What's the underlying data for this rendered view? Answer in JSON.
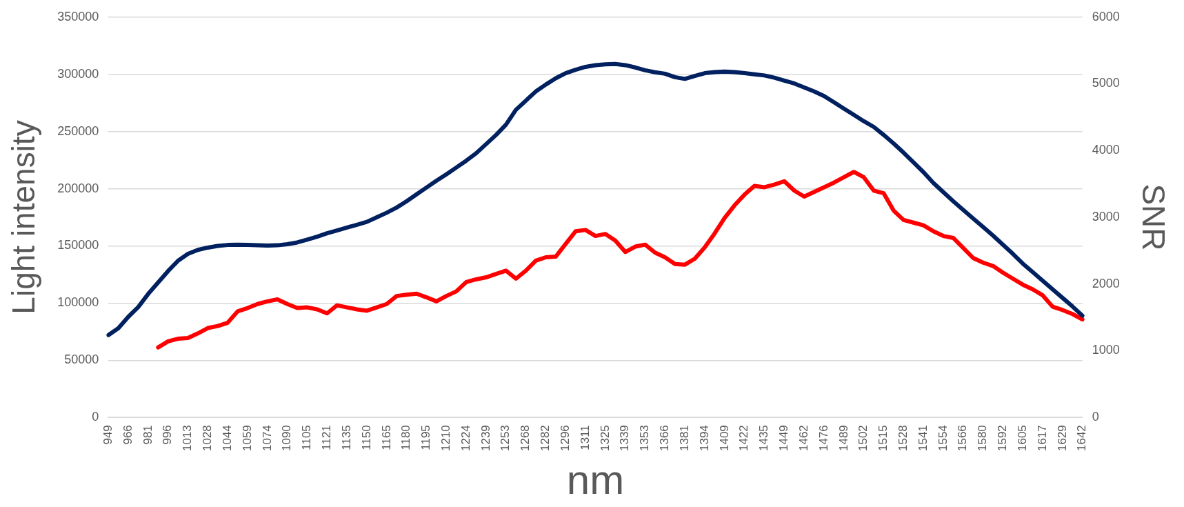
{
  "chart_data": {
    "type": "line",
    "xlabel": "nm",
    "ylabel": "Light intensity",
    "y2label": "SNR",
    "categories": [
      "949",
      null,
      "966",
      null,
      "981",
      null,
      "996",
      null,
      "1013",
      null,
      "1028",
      null,
      "1044",
      null,
      "1059",
      null,
      "1074",
      null,
      "1090",
      null,
      "1105",
      null,
      "1121",
      null,
      "1135",
      null,
      "1150",
      null,
      "1165",
      null,
      "1180",
      null,
      "1195",
      null,
      "1210",
      null,
      "1224",
      null,
      "1239",
      null,
      "1253",
      null,
      "1268",
      null,
      "1282",
      null,
      "1296",
      null,
      "1311",
      null,
      "1325",
      null,
      "1339",
      null,
      "1353",
      null,
      "1366",
      null,
      "1381",
      null,
      "1394",
      null,
      "1409",
      null,
      "1422",
      null,
      "1435",
      null,
      "1449",
      null,
      "1462",
      null,
      "1476",
      null,
      "1489",
      null,
      "1502",
      null,
      "1515",
      null,
      "1528",
      null,
      "1541",
      null,
      "1554",
      null,
      "1566",
      null,
      "1580",
      null,
      "1592",
      null,
      "1605",
      null,
      "1617",
      null,
      "1629",
      null,
      "1642"
    ],
    "series": [
      {
        "color": "#002060",
        "values": [
          72000,
          78000,
          88000,
          96500,
          108000,
          118000,
          128000,
          137000,
          143000,
          146500,
          148500,
          150000,
          150800,
          151000,
          150800,
          150500,
          150200,
          150500,
          151500,
          153000,
          155500,
          158000,
          161000,
          163500,
          166000,
          168500,
          171000,
          175000,
          179000,
          183500,
          189000,
          195000,
          201000,
          207000,
          212500,
          218500,
          224500,
          231000,
          239000,
          247000,
          256000,
          269000,
          277000,
          285000,
          291000,
          296500,
          301000,
          304000,
          306500,
          308000,
          308700,
          309000,
          308000,
          306000,
          303500,
          301800,
          300500,
          297500,
          296000,
          298500,
          301000,
          302000,
          302400,
          302000,
          301000,
          300000,
          299000,
          297000,
          294500,
          292000,
          288500,
          285000,
          281000,
          275500,
          270000,
          264500,
          259000,
          254000,
          247000,
          239500,
          231500,
          223000,
          214500,
          205000,
          197000,
          189000,
          181500,
          174000,
          166500,
          159000,
          151000,
          143000,
          134500,
          127000,
          119500,
          112000,
          104500,
          97000,
          89000
        ]
      },
      {
        "color": "#ff0000",
        "axis": "y2",
        "values": [
          null,
          null,
          null,
          null,
          null,
          1050,
          1140,
          1180,
          1190,
          1260,
          1340,
          1370,
          1420,
          1590,
          1640,
          1700,
          1740,
          1770,
          1700,
          1640,
          1650,
          1620,
          1560,
          1680,
          1650,
          1620,
          1600,
          1650,
          1700,
          1820,
          1840,
          1855,
          1800,
          1740,
          1820,
          1890,
          2030,
          2070,
          2100,
          2150,
          2200,
          2080,
          2200,
          2350,
          2400,
          2410,
          2600,
          2790,
          2810,
          2720,
          2750,
          2650,
          2480,
          2560,
          2590,
          2470,
          2400,
          2300,
          2290,
          2380,
          2550,
          2760,
          2990,
          3180,
          3340,
          3470,
          3450,
          3490,
          3540,
          3400,
          3310,
          3380,
          3450,
          3520,
          3600,
          3680,
          3600,
          3400,
          3360,
          3100,
          2960,
          2920,
          2880,
          2790,
          2720,
          2690,
          2540,
          2390,
          2320,
          2270,
          2170,
          2080,
          1990,
          1920,
          1830,
          1660,
          1610,
          1550,
          1470
        ]
      }
    ],
    "ylim": [
      0,
      350000
    ],
    "yticks": [
      0,
      50000,
      100000,
      150000,
      200000,
      250000,
      300000,
      350000
    ],
    "y2lim": [
      0,
      6000
    ],
    "y2ticks": [
      0,
      1000,
      2000,
      3000,
      4000,
      5000,
      6000
    ],
    "grid": "y",
    "marker": "none"
  }
}
